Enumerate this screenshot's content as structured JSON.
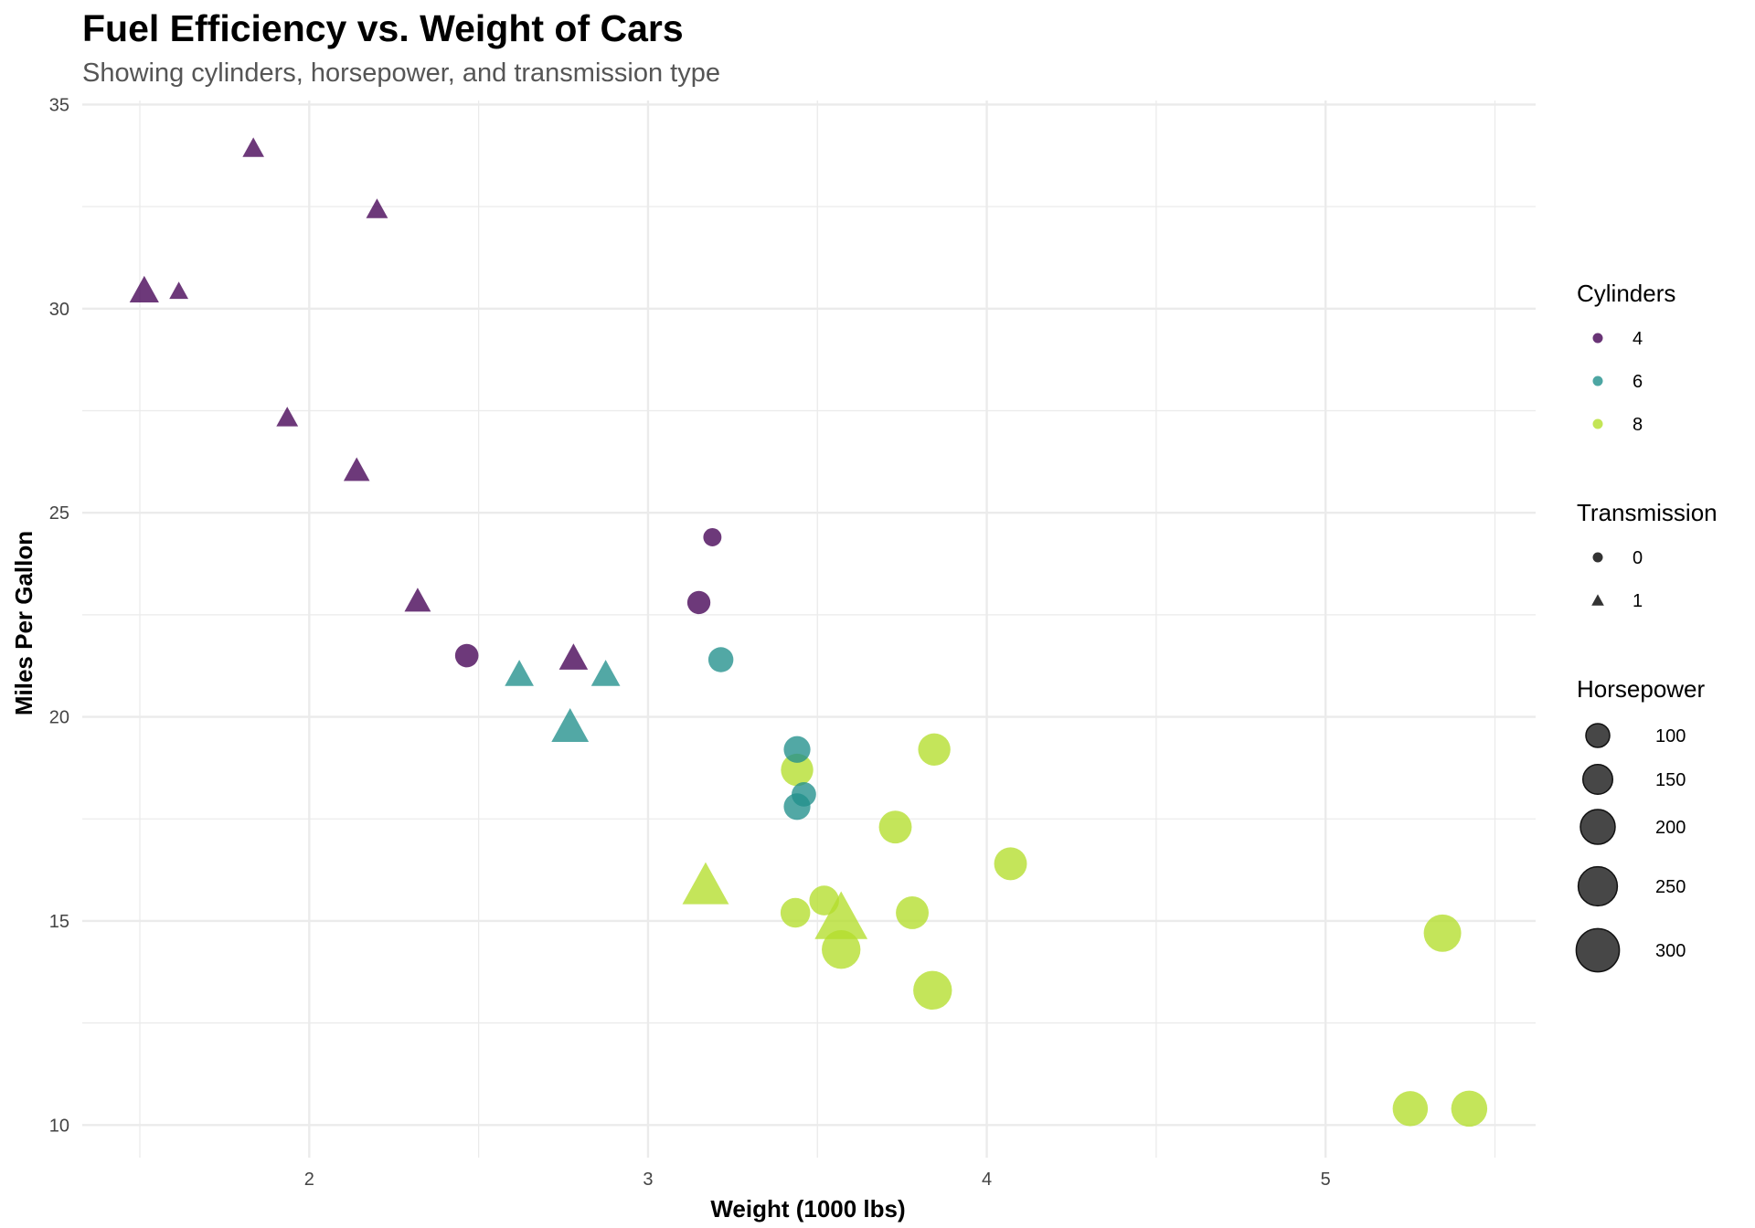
{
  "colors": {
    "cyl4": "#440154",
    "cyl6": "#21908C",
    "cyl8": "#B4DE2C",
    "legend_gray": "#333333",
    "grid": "#EBEBEB"
  },
  "chart_data": {
    "type": "scatter",
    "title": "Fuel Efficiency vs. Weight of Cars",
    "subtitle": "Showing cylinders, horsepower, and transmission type",
    "xlabel": "Weight (1000 lbs)",
    "ylabel": "Miles Per Gallon",
    "xlim": [
      1.33,
      5.62
    ],
    "ylim": [
      9.2,
      35.1
    ],
    "x_ticks": [
      2,
      3,
      4,
      5
    ],
    "y_ticks": [
      10,
      15,
      20,
      25,
      30,
      35
    ],
    "grid": true,
    "legend_position": "right",
    "legends": {
      "color": {
        "title": "Cylinders",
        "entries": [
          "4",
          "6",
          "8"
        ]
      },
      "shape": {
        "title": "Transmission",
        "entries": [
          "0",
          "1"
        ]
      },
      "size": {
        "title": "Horsepower",
        "entries": [
          "100",
          "150",
          "200",
          "250",
          "300"
        ]
      }
    },
    "points": [
      {
        "x": 2.62,
        "y": 21.0,
        "cyl": 6,
        "am": 1,
        "hp": 110
      },
      {
        "x": 2.875,
        "y": 21.0,
        "cyl": 6,
        "am": 1,
        "hp": 110
      },
      {
        "x": 2.32,
        "y": 22.8,
        "cyl": 4,
        "am": 1,
        "hp": 93
      },
      {
        "x": 3.215,
        "y": 21.4,
        "cyl": 6,
        "am": 0,
        "hp": 110
      },
      {
        "x": 3.44,
        "y": 18.7,
        "cyl": 8,
        "am": 0,
        "hp": 175
      },
      {
        "x": 3.46,
        "y": 18.1,
        "cyl": 6,
        "am": 0,
        "hp": 105
      },
      {
        "x": 3.57,
        "y": 14.3,
        "cyl": 8,
        "am": 0,
        "hp": 245
      },
      {
        "x": 3.19,
        "y": 24.4,
        "cyl": 4,
        "am": 0,
        "hp": 62
      },
      {
        "x": 3.15,
        "y": 22.8,
        "cyl": 4,
        "am": 0,
        "hp": 95
      },
      {
        "x": 3.44,
        "y": 19.2,
        "cyl": 6,
        "am": 0,
        "hp": 123
      },
      {
        "x": 3.44,
        "y": 17.8,
        "cyl": 6,
        "am": 0,
        "hp": 123
      },
      {
        "x": 4.07,
        "y": 16.4,
        "cyl": 8,
        "am": 0,
        "hp": 180
      },
      {
        "x": 3.73,
        "y": 17.3,
        "cyl": 8,
        "am": 0,
        "hp": 180
      },
      {
        "x": 3.78,
        "y": 15.2,
        "cyl": 8,
        "am": 0,
        "hp": 180
      },
      {
        "x": 5.25,
        "y": 10.4,
        "cyl": 8,
        "am": 0,
        "hp": 205
      },
      {
        "x": 5.424,
        "y": 10.4,
        "cyl": 8,
        "am": 0,
        "hp": 215
      },
      {
        "x": 5.345,
        "y": 14.7,
        "cyl": 8,
        "am": 0,
        "hp": 230
      },
      {
        "x": 2.2,
        "y": 32.4,
        "cyl": 4,
        "am": 1,
        "hp": 66
      },
      {
        "x": 1.615,
        "y": 30.4,
        "cyl": 4,
        "am": 1,
        "hp": 52
      },
      {
        "x": 1.835,
        "y": 33.9,
        "cyl": 4,
        "am": 1,
        "hp": 65
      },
      {
        "x": 2.465,
        "y": 21.5,
        "cyl": 4,
        "am": 0,
        "hp": 97
      },
      {
        "x": 3.52,
        "y": 15.5,
        "cyl": 8,
        "am": 0,
        "hp": 150
      },
      {
        "x": 3.435,
        "y": 15.2,
        "cyl": 8,
        "am": 0,
        "hp": 150
      },
      {
        "x": 3.84,
        "y": 13.3,
        "cyl": 8,
        "am": 0,
        "hp": 245
      },
      {
        "x": 3.845,
        "y": 19.2,
        "cyl": 8,
        "am": 0,
        "hp": 175
      },
      {
        "x": 1.935,
        "y": 27.3,
        "cyl": 4,
        "am": 1,
        "hp": 66
      },
      {
        "x": 2.14,
        "y": 26.0,
        "cyl": 4,
        "am": 1,
        "hp": 91
      },
      {
        "x": 1.513,
        "y": 30.4,
        "cyl": 4,
        "am": 1,
        "hp": 113
      },
      {
        "x": 3.17,
        "y": 15.8,
        "cyl": 8,
        "am": 1,
        "hp": 264
      },
      {
        "x": 2.77,
        "y": 19.7,
        "cyl": 6,
        "am": 1,
        "hp": 175
      },
      {
        "x": 3.57,
        "y": 15.0,
        "cyl": 8,
        "am": 1,
        "hp": 335
      },
      {
        "x": 2.78,
        "y": 21.4,
        "cyl": 4,
        "am": 1,
        "hp": 109
      }
    ]
  }
}
